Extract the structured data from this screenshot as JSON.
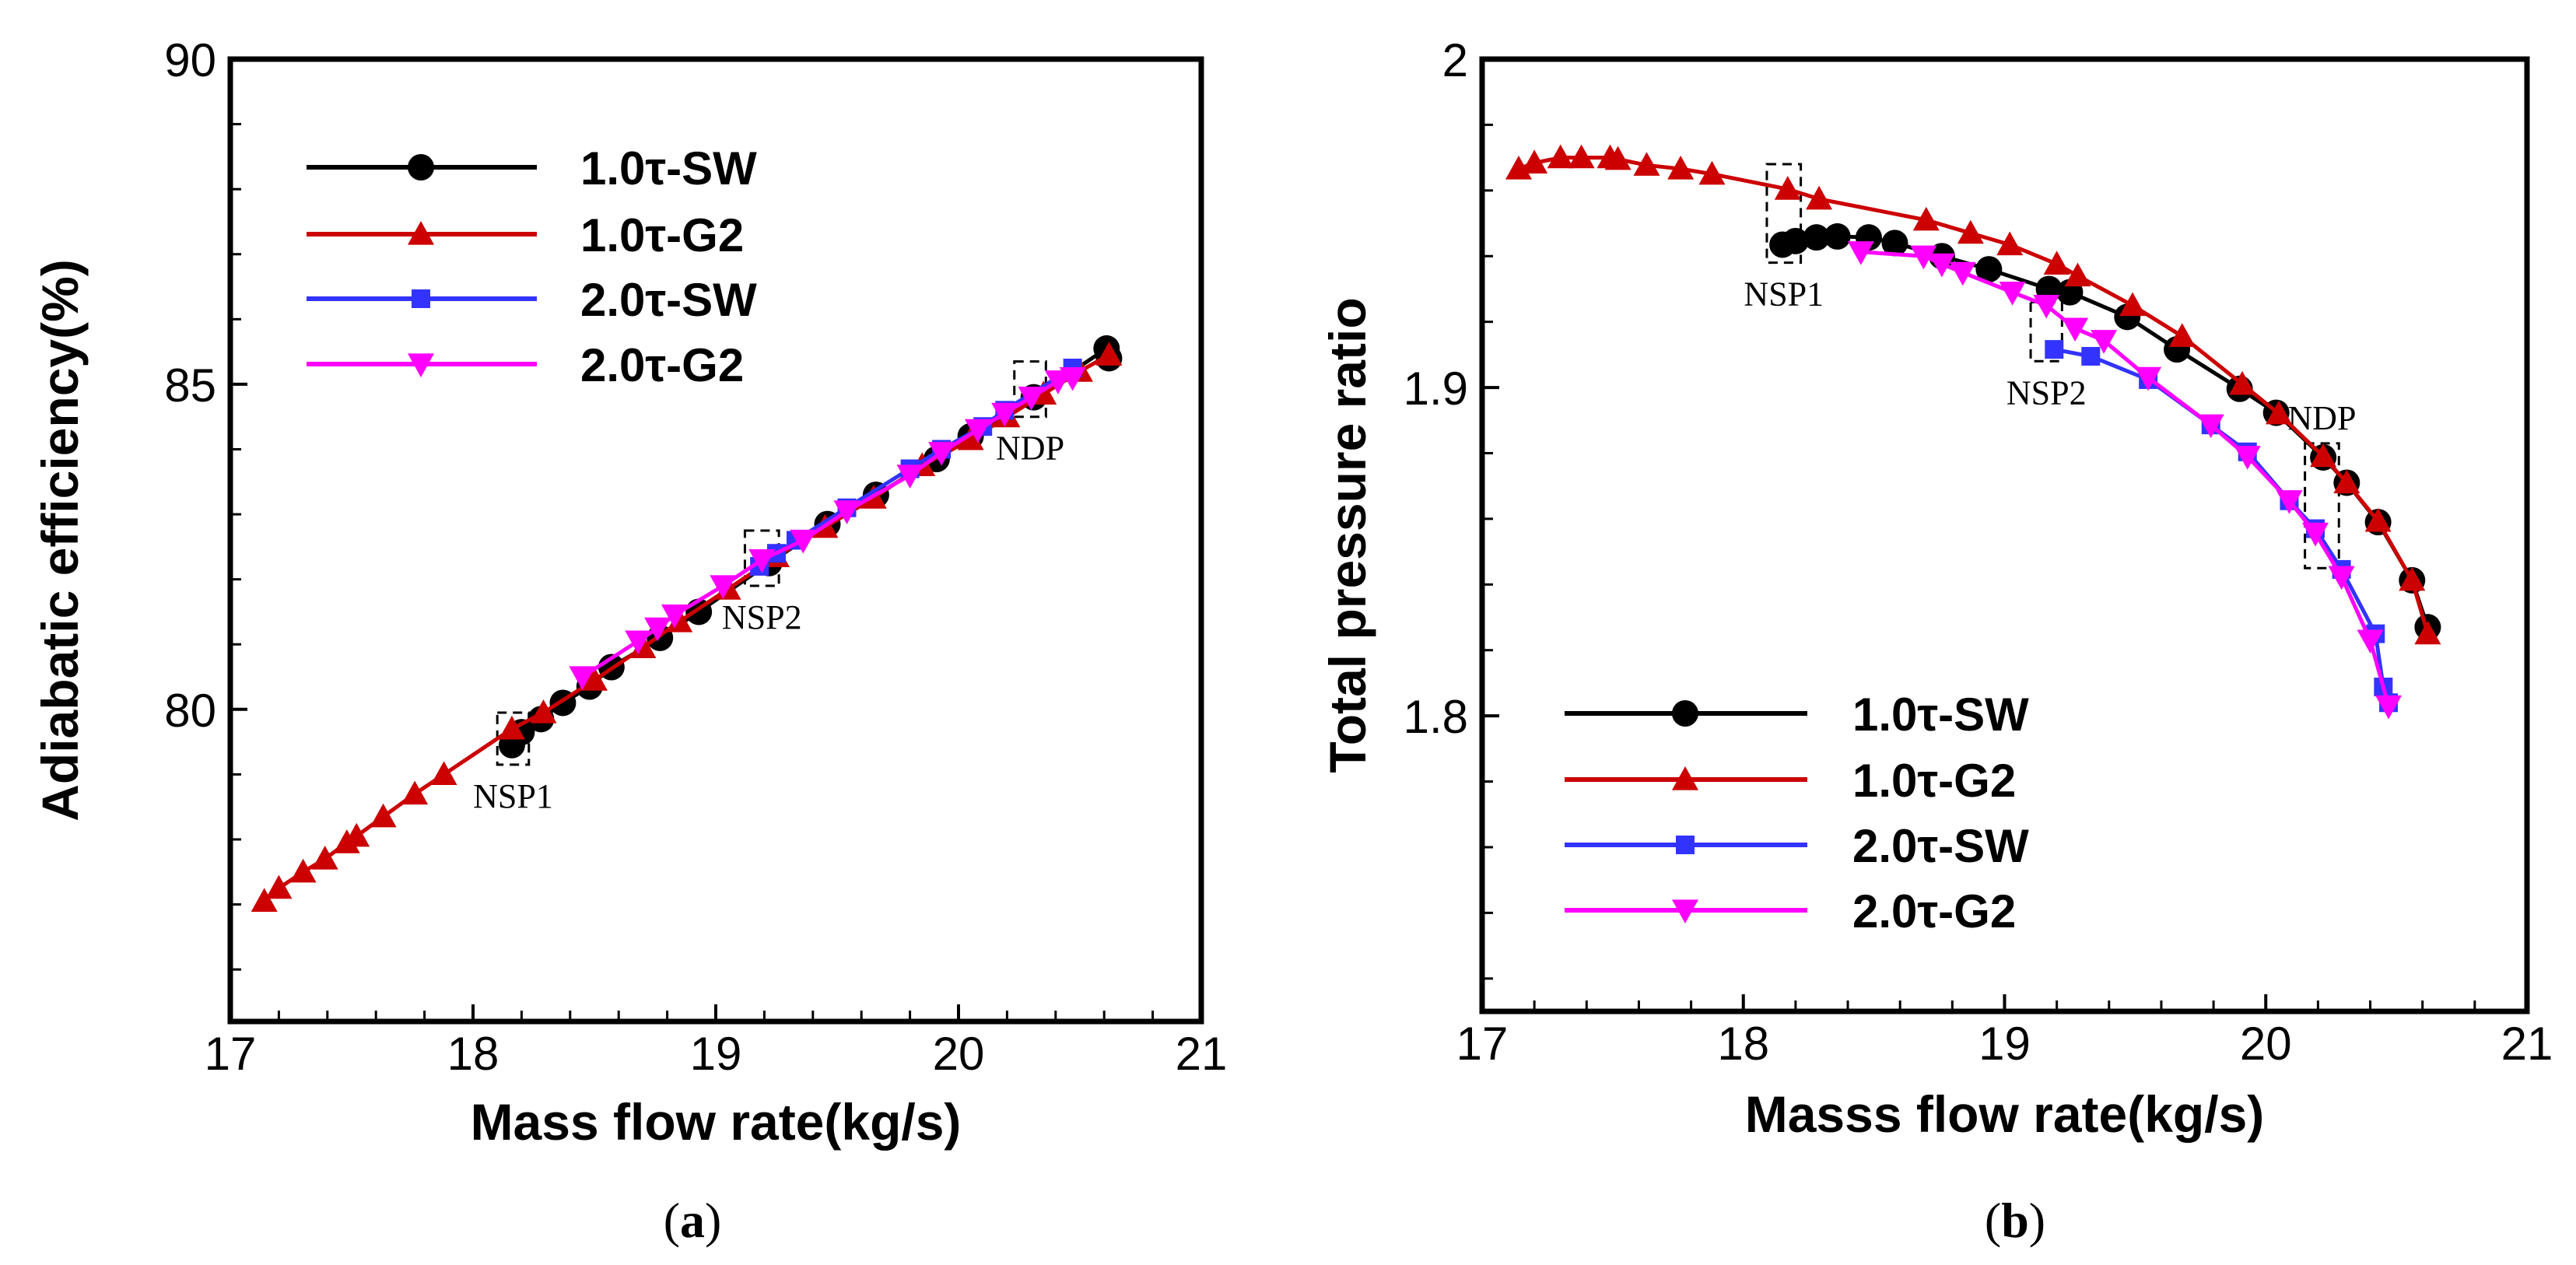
{
  "captions": {
    "a_open": "(",
    "a_letter": "a",
    "a_close": ")",
    "b_open": "(",
    "b_letter": "b",
    "b_close": ")"
  },
  "chart_data": [
    {
      "id": "a",
      "type": "line",
      "title": "",
      "xlabel": "Mass flow rate(kg/s)",
      "ylabel": "Adiabatic efficiency(%)",
      "xlim": [
        17,
        21
      ],
      "ylim": [
        75.2,
        90
      ],
      "xticks": [
        17,
        18,
        19,
        20,
        21
      ],
      "yticks": [
        80,
        85,
        90
      ],
      "xminor": 0.2,
      "yminor": 1,
      "grid": false,
      "legend": "top-left",
      "series": [
        {
          "name": "1.0τ-SW",
          "color": "#000000",
          "marker": "circle",
          "x": [
            18.16,
            18.2,
            18.28,
            18.37,
            18.48,
            18.57,
            18.77,
            18.93,
            19.22,
            19.46,
            19.66,
            19.91,
            20.05,
            20.31,
            20.61,
            20.62
          ],
          "y": [
            79.45,
            79.65,
            79.85,
            80.1,
            80.35,
            80.65,
            81.1,
            81.5,
            82.25,
            82.85,
            83.3,
            83.85,
            84.2,
            84.8,
            85.55,
            85.4
          ]
        },
        {
          "name": "1.0τ-G2",
          "color": "#cc0000",
          "marker": "triangle-up",
          "x": [
            17.14,
            17.2,
            17.3,
            17.39,
            17.48,
            17.52,
            17.63,
            17.76,
            17.88,
            18.16,
            18.29,
            18.5,
            18.7,
            18.85,
            19.05,
            19.25,
            19.45,
            19.65,
            19.85,
            20.05,
            20.2,
            20.35,
            20.5,
            20.62
          ],
          "y": [
            77.05,
            77.25,
            77.5,
            77.7,
            77.95,
            78.05,
            78.35,
            78.7,
            79.0,
            79.7,
            79.95,
            80.45,
            80.95,
            81.35,
            81.85,
            82.35,
            82.8,
            83.25,
            83.75,
            84.15,
            84.5,
            84.85,
            85.2,
            85.45
          ]
        },
        {
          "name": "2.0τ-SW",
          "color": "#3333ff",
          "marker": "square",
          "x": [
            19.18,
            19.25,
            19.33,
            19.54,
            19.8,
            19.93,
            20.1,
            20.19,
            20.47
          ],
          "y": [
            82.2,
            82.4,
            82.6,
            83.1,
            83.7,
            84.0,
            84.35,
            84.6,
            85.25
          ]
        },
        {
          "name": "2.0τ-G2",
          "color": "#ff00ff",
          "marker": "triangle-down",
          "x": [
            18.45,
            18.68,
            18.76,
            18.83,
            19.03,
            19.19,
            19.36,
            19.54,
            19.8,
            19.93,
            20.08,
            20.19,
            20.3,
            20.41,
            20.47
          ],
          "y": [
            80.5,
            81.05,
            81.25,
            81.45,
            81.9,
            82.3,
            82.6,
            83.05,
            83.6,
            83.95,
            84.3,
            84.55,
            84.8,
            85.05,
            85.1
          ]
        }
      ],
      "annotations": [
        {
          "text": "NSP1",
          "box_x": [
            18.1,
            18.23
          ],
          "box_y": [
            79.15,
            79.95
          ]
        },
        {
          "text": "NSP2",
          "box_x": [
            19.12,
            19.26
          ],
          "box_y": [
            81.9,
            82.75
          ]
        },
        {
          "text": "NDP",
          "box_x": [
            20.23,
            20.36
          ],
          "box_y": [
            84.5,
            85.35
          ]
        }
      ]
    },
    {
      "id": "b",
      "type": "line",
      "title": "",
      "xlabel": "Masss flow rate(kg/s)",
      "ylabel": "Total pressure ratio",
      "xlim": [
        17,
        21
      ],
      "ylim": [
        1.71,
        2.0
      ],
      "xticks": [
        17,
        18,
        19,
        20,
        21
      ],
      "yticks": [
        1.8,
        1.9,
        2
      ],
      "xminor": 0.2,
      "yminor": 0.02,
      "grid": false,
      "legend": "bottom-left",
      "series": [
        {
          "name": "1.0τ-SW",
          "color": "#000000",
          "marker": "circle",
          "x": [
            18.15,
            18.2,
            18.28,
            18.36,
            18.48,
            18.58,
            18.76,
            18.94,
            19.17,
            19.25,
            19.47,
            19.66,
            19.9,
            20.04,
            20.22,
            20.31,
            20.43,
            20.56,
            20.62
          ],
          "y": [
            1.9435,
            1.9446,
            1.9457,
            1.946,
            1.9457,
            1.944,
            1.94,
            1.936,
            1.93,
            1.929,
            1.9215,
            1.9116,
            1.8996,
            1.8923,
            1.8787,
            1.871,
            1.859,
            1.8413,
            1.827
          ]
        },
        {
          "name": "1.0τ-G2",
          "color": "#cc0000",
          "marker": "triangle-up",
          "x": [
            17.14,
            17.2,
            17.3,
            17.38,
            17.49,
            17.52,
            17.63,
            17.76,
            17.88,
            18.17,
            18.29,
            18.7,
            18.87,
            19.02,
            19.2,
            19.28,
            19.49,
            19.68,
            19.91,
            20.05,
            20.22,
            20.31,
            20.43,
            20.56,
            20.62
          ],
          "y": [
            1.9666,
            1.9684,
            1.97,
            1.97,
            1.97,
            1.9695,
            1.9677,
            1.9666,
            1.965,
            1.9604,
            1.9574,
            1.951,
            1.947,
            1.9435,
            1.9376,
            1.934,
            1.925,
            1.9156,
            1.901,
            1.892,
            1.879,
            1.871,
            1.8593,
            1.8413,
            1.825
          ]
        },
        {
          "name": "2.0τ-SW",
          "color": "#3333ff",
          "marker": "square",
          "x": [
            19.19,
            19.33,
            19.55,
            19.79,
            19.93,
            20.09,
            20.19,
            20.29,
            20.42,
            20.45,
            20.47
          ],
          "y": [
            1.9116,
            1.9095,
            1.9024,
            1.8886,
            1.8804,
            1.8655,
            1.857,
            1.8446,
            1.825,
            1.8088,
            1.804
          ]
        },
        {
          "name": "2.0τ-G2",
          "color": "#ff00ff",
          "marker": "triangle-down",
          "x": [
            18.45,
            18.69,
            18.76,
            18.84,
            19.03,
            19.16,
            19.27,
            19.38,
            19.55,
            19.79,
            19.93,
            20.09,
            20.19,
            20.29,
            20.4,
            20.47
          ],
          "y": [
            1.9413,
            1.94,
            1.9376,
            1.935,
            1.929,
            1.925,
            1.918,
            1.9143,
            1.903,
            1.8886,
            1.879,
            1.8655,
            1.8556,
            1.8424,
            1.823,
            1.803
          ]
        }
      ],
      "annotations": [
        {
          "text": "NSP1",
          "box_x": [
            18.09,
            18.22
          ],
          "box_y": [
            1.938,
            1.968
          ]
        },
        {
          "text": "NSP2",
          "box_x": [
            19.1,
            19.22
          ],
          "box_y": [
            1.908,
            1.926
          ]
        },
        {
          "text": "NDP",
          "box_x": [
            20.15,
            20.28
          ],
          "box_y": [
            1.845,
            1.883
          ]
        }
      ]
    }
  ]
}
